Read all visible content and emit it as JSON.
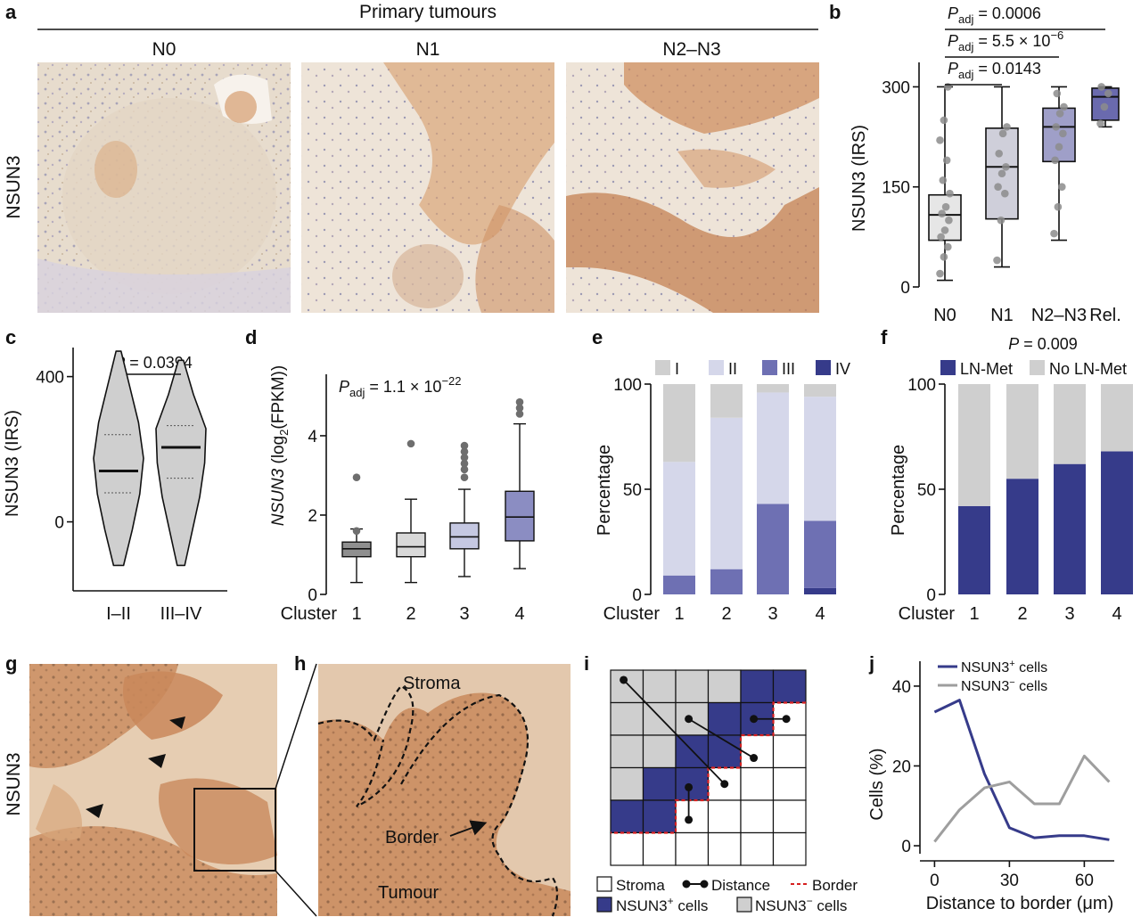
{
  "colors": {
    "tissue": "#e9dccb",
    "tissue_dark": "#c98a5c",
    "navy": "#363b8a",
    "lavender": "#d5d7ea",
    "purple_mid": "#6e70b3",
    "light_gray": "#cfcfcf",
    "c1": "#8f8f8f",
    "c2": "#d9d9d9",
    "c3": "#c5c8e2",
    "c4": "#8b8dc2",
    "n0": "#e6e6e6",
    "n1": "#cfcfda",
    "n23": "#9f9fc8",
    "rel": "#6a6aae",
    "border_red": "#d62020"
  },
  "panel_a": {
    "letter": "a",
    "header": "Primary tumours",
    "row_label": "NSUN3",
    "columns": [
      "N0",
      "N1",
      "N2–N3"
    ]
  },
  "panel_b": {
    "letter": "b",
    "chart_data": {
      "type": "box",
      "categories": [
        "N0",
        "N1",
        "N2–N3",
        "Rel."
      ],
      "ylabel": "NSUN3 (IRS)",
      "ylim": [
        0,
        330
      ],
      "yticks": [
        0,
        150,
        300
      ],
      "boxes": [
        {
          "min": 10,
          "q1": 70,
          "median": 108,
          "q3": 138,
          "max": 300
        },
        {
          "min": 30,
          "q1": 102,
          "median": 180,
          "q3": 238,
          "max": 300
        },
        {
          "min": 70,
          "q1": 188,
          "median": 240,
          "q3": 268,
          "max": 300
        },
        {
          "min": 240,
          "q1": 250,
          "median": 285,
          "q3": 298,
          "max": 300
        }
      ],
      "points": [
        [
          20,
          45,
          60,
          75,
          85,
          100,
          110,
          120,
          140,
          160,
          190,
          220,
          250,
          300
        ],
        [
          40,
          100,
          140,
          150,
          170,
          180,
          200,
          230,
          240
        ],
        [
          80,
          120,
          150,
          190,
          210,
          230,
          240,
          260,
          270,
          290
        ],
        [
          245,
          270,
          290,
          300
        ]
      ],
      "comparisons": [
        {
          "p_symbol": "P",
          "p_sub": "adj",
          "text": " = 0.0006",
          "to": "Rel."
        },
        {
          "p_symbol": "P",
          "p_sub": "adj",
          "text": " = 5.5 × 10",
          "exp": "−6",
          "to": "N2–N3"
        },
        {
          "p_symbol": "P",
          "p_sub": "adj",
          "text": " = 0.0143",
          "to": "N1"
        }
      ]
    }
  },
  "panel_c": {
    "letter": "c",
    "chart_data": {
      "type": "violin",
      "categories": [
        "I–II",
        "III–IV"
      ],
      "ylabel": "NSUN3 (IRS)",
      "ylim": [
        -190,
        480
      ],
      "yticks": [
        0,
        400
      ],
      "medians": [
        140,
        205
      ],
      "quartiles": [
        [
          80,
          240
        ],
        [
          120,
          265
        ]
      ],
      "ranges": [
        [
          -120,
          470
        ],
        [
          -120,
          445
        ]
      ],
      "p_symbol": "P",
      "p_text": " = 0.0394"
    }
  },
  "panel_d": {
    "letter": "d",
    "chart_data": {
      "type": "box",
      "categories": [
        "1",
        "2",
        "3",
        "4"
      ],
      "x_prefix": "Cluster",
      "ylabel_italic": "NSUN3",
      "ylabel_rest": " (log",
      "ylabel_sub": "2",
      "ylabel_end": "(FPKM))",
      "ylim": [
        0,
        5.1
      ],
      "yticks": [
        0,
        2,
        4
      ],
      "p_symbol": "P",
      "p_sub": "adj",
      "p_text": " = 1.1 × 10",
      "p_exp": "−22",
      "boxes": [
        {
          "min": 0.3,
          "q1": 0.95,
          "median": 1.15,
          "q3": 1.32,
          "max": 1.65
        },
        {
          "min": 0.3,
          "q1": 0.95,
          "median": 1.2,
          "q3": 1.55,
          "max": 2.4
        },
        {
          "min": 0.45,
          "q1": 1.15,
          "median": 1.45,
          "q3": 1.8,
          "max": 2.65
        },
        {
          "min": 0.65,
          "q1": 1.35,
          "median": 1.95,
          "q3": 2.6,
          "max": 4.3
        }
      ],
      "outliers": [
        [
          1.6,
          2.95
        ],
        [
          3.8
        ],
        [
          2.95,
          3.15,
          3.3,
          3.45,
          3.6,
          3.75
        ],
        [
          4.55,
          4.7,
          4.85
        ]
      ]
    }
  },
  "panel_e": {
    "letter": "e",
    "chart_data": {
      "type": "stacked-bar",
      "categories": [
        "1",
        "2",
        "3",
        "4"
      ],
      "x_prefix": "Cluster",
      "ylabel": "Percentage",
      "ylim": [
        0,
        100
      ],
      "yticks": [
        0,
        50,
        100
      ],
      "series": [
        {
          "name": "IV",
          "values": [
            0,
            0,
            0,
            3
          ]
        },
        {
          "name": "III",
          "values": [
            9,
            12,
            43,
            32
          ]
        },
        {
          "name": "II",
          "values": [
            54,
            72,
            53,
            59
          ]
        },
        {
          "name": "I",
          "values": [
            37,
            16,
            4,
            6
          ]
        }
      ],
      "legend": [
        "I",
        "II",
        "III",
        "IV"
      ]
    }
  },
  "panel_f": {
    "letter": "f",
    "chart_data": {
      "type": "stacked-bar",
      "categories": [
        "1",
        "2",
        "3",
        "4"
      ],
      "x_prefix": "Cluster",
      "ylabel": "Percentage",
      "ylim": [
        0,
        100
      ],
      "yticks": [
        0,
        50,
        100
      ],
      "series": [
        {
          "name": "LN-Met",
          "values": [
            42,
            55,
            62,
            68
          ]
        },
        {
          "name": "No LN-Met",
          "values": [
            58,
            45,
            38,
            32
          ]
        }
      ],
      "p_symbol": "P",
      "p_text": " = 0.009"
    }
  },
  "panel_g": {
    "letter": "g",
    "row_label": "NSUN3"
  },
  "panel_h": {
    "letter": "h",
    "labels": [
      "Stroma",
      "Border",
      "Tumour"
    ]
  },
  "panel_i": {
    "letter": "i",
    "legend": {
      "stroma": "Stroma",
      "distance": "Distance",
      "border": "Border",
      "pos_prefix": "NSUN3",
      "pos_sup": "+",
      "pos_suffix": " cells",
      "neg_prefix": "NSUN3",
      "neg_sup": "−",
      "neg_suffix": " cells"
    }
  },
  "panel_j": {
    "letter": "j",
    "chart_data": {
      "type": "line",
      "xlabel_pre": "Distance to border (",
      "xlabel_mu": "μm",
      "xlabel_post": ")",
      "ylabel": "Cells (%)",
      "xlim": [
        -3,
        72
      ],
      "ylim": [
        -2,
        44
      ],
      "xticks": [
        0,
        30,
        60
      ],
      "yticks": [
        0,
        20,
        40
      ],
      "series": [
        {
          "name": "NSUN3⁺ cells",
          "legend_prefix": "NSUN3",
          "legend_sup": "+",
          "legend_suffix": " cells",
          "x": [
            0,
            10,
            20,
            30,
            40,
            50,
            60,
            70
          ],
          "y": [
            33.5,
            36.5,
            18,
            4.5,
            2,
            2.5,
            2.5,
            1.5
          ]
        },
        {
          "name": "NSUN3⁻ cells",
          "legend_prefix": "NSUN3",
          "legend_sup": "−",
          "legend_suffix": " cells",
          "x": [
            0,
            10,
            20,
            30,
            40,
            50,
            60,
            70
          ],
          "y": [
            1,
            9,
            14.5,
            16,
            10.5,
            10.5,
            22.5,
            16
          ]
        }
      ]
    }
  }
}
